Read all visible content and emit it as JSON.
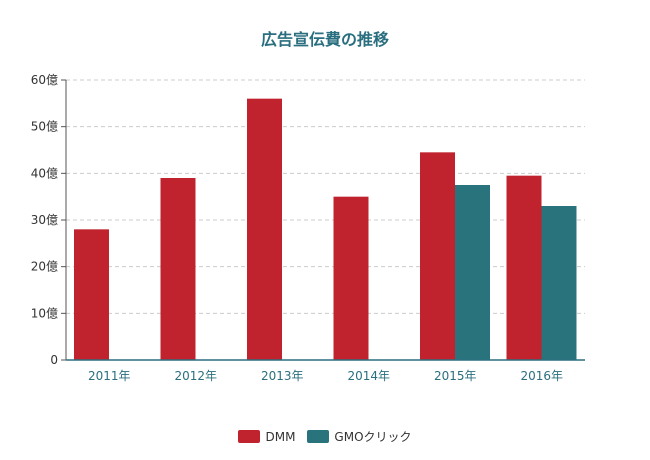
{
  "chart_data": {
    "type": "bar",
    "title": "広告宣伝費の推移",
    "categories": [
      "2011年",
      "2012年",
      "2013年",
      "2014年",
      "2015年",
      "2016年"
    ],
    "series": [
      {
        "name": "DMM",
        "color": "#c0232d",
        "values": [
          28,
          39,
          56,
          35,
          44.5,
          39.5
        ]
      },
      {
        "name": "GMOクリック",
        "color": "#28737c",
        "values": [
          null,
          null,
          null,
          null,
          37.5,
          33
        ]
      }
    ],
    "y_ticks": [
      "0",
      "10億",
      "20億",
      "30億",
      "40億",
      "50億",
      "60億"
    ],
    "ylim": [
      0,
      60
    ],
    "grid": true,
    "legend_position": "bottom"
  }
}
